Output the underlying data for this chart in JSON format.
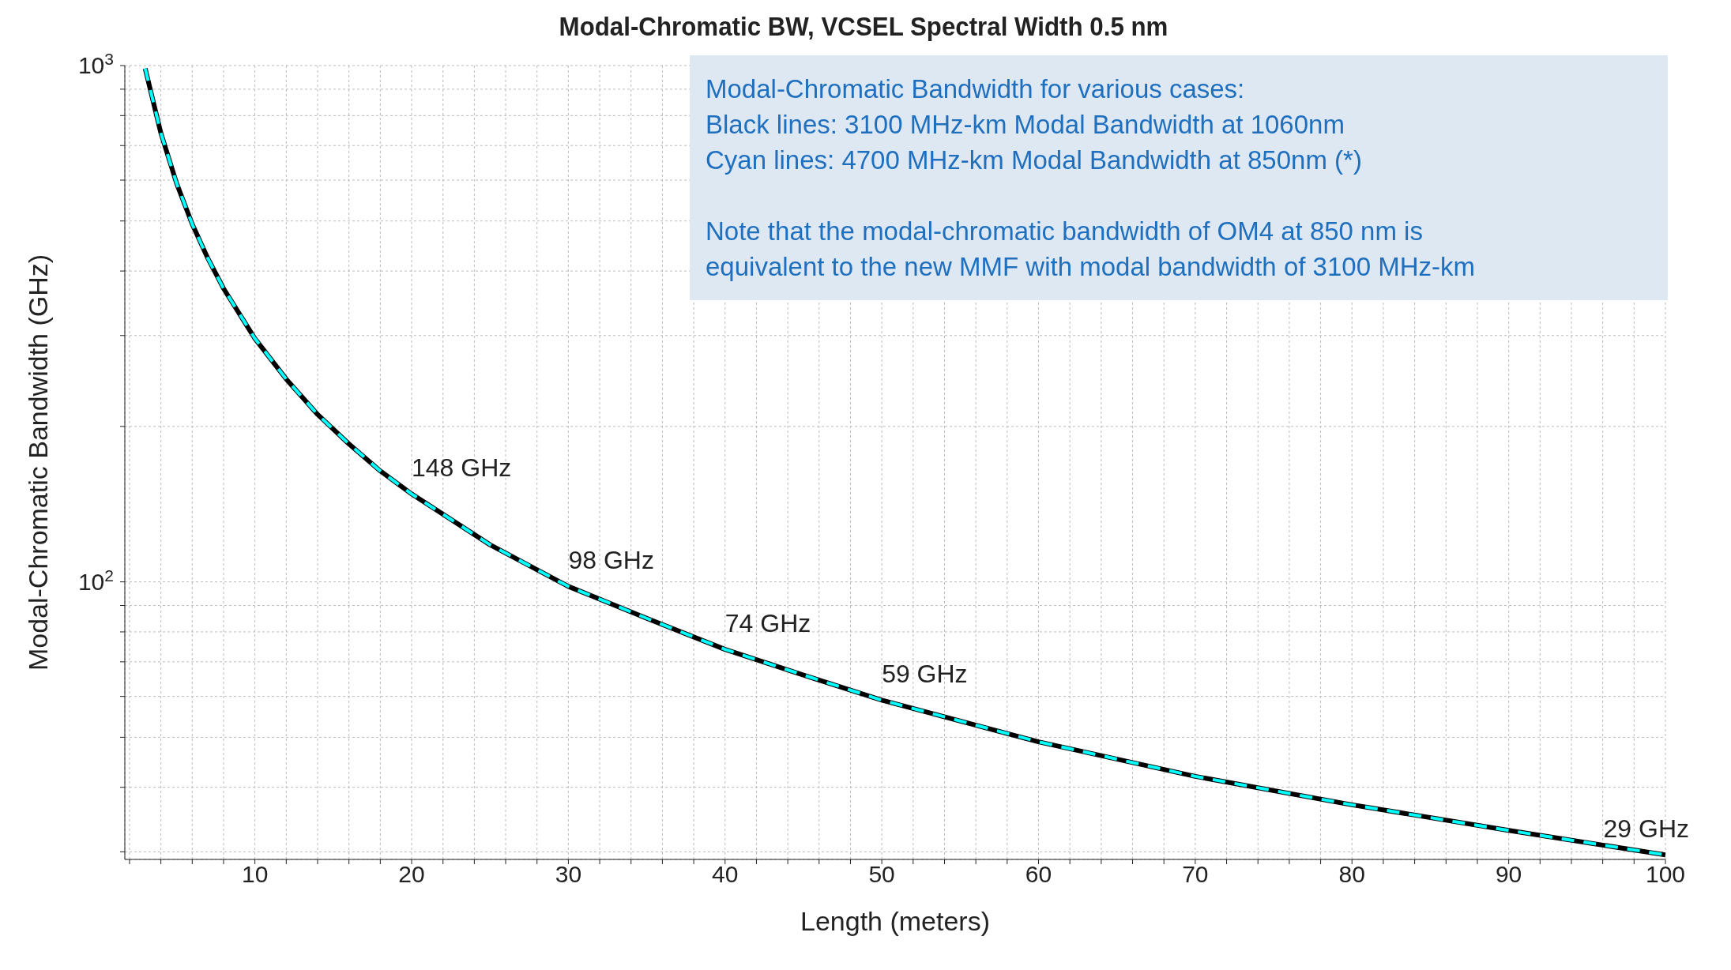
{
  "chart_data": {
    "type": "line",
    "title": "Modal-Chromatic BW, VCSEL Spectral Width 0.5 nm",
    "xlabel": "Length (meters)",
    "ylabel": "Modal-Chromatic Bandwidth (GHz)",
    "x": [
      3,
      4,
      5,
      6,
      7,
      8,
      10,
      12,
      14,
      16,
      18,
      20,
      25,
      30,
      35,
      40,
      45,
      50,
      60,
      70,
      80,
      90,
      100
    ],
    "series": [
      {
        "color": "#000000",
        "line_style": "solid",
        "values": [
          987,
          740,
          592,
          493,
          423,
          370,
          296,
          247,
          211,
          185,
          164,
          148,
          118,
          98,
          85,
          74,
          66,
          59,
          49,
          42,
          37,
          33,
          29.6
        ]
      },
      {
        "color": "#00ffff",
        "line_style": "dashed",
        "values": [
          987,
          740,
          592,
          493,
          423,
          370,
          296,
          247,
          211,
          185,
          164,
          148,
          118,
          98,
          85,
          74,
          66,
          59,
          49,
          42,
          37,
          33,
          29.6
        ]
      }
    ],
    "log": "y",
    "xlim": [
      1.7,
      100
    ],
    "ylim": [
      29,
      1000
    ],
    "xticks": [
      {
        "value": 2,
        "label": null
      },
      {
        "value": 4,
        "label": null
      },
      {
        "value": 6,
        "label": null
      },
      {
        "value": 8,
        "label": null
      },
      10,
      {
        "value": 12,
        "label": null
      },
      {
        "value": 14,
        "label": null
      },
      {
        "value": 16,
        "label": null
      },
      {
        "value": 18,
        "label": null
      },
      20,
      {
        "value": 22,
        "label": null
      },
      {
        "value": 24,
        "label": null
      },
      {
        "value": 26,
        "label": null
      },
      {
        "value": 28,
        "label": null
      },
      30,
      {
        "value": 32,
        "label": null
      },
      {
        "value": 34,
        "label": null
      },
      {
        "value": 36,
        "label": null
      },
      {
        "value": 38,
        "label": null
      },
      40,
      {
        "value": 42,
        "label": null
      },
      {
        "value": 44,
        "label": null
      },
      {
        "value": 46,
        "label": null
      },
      {
        "value": 48,
        "label": null
      },
      50,
      {
        "value": 52,
        "label": null
      },
      {
        "value": 54,
        "label": null
      },
      {
        "value": 56,
        "label": null
      },
      {
        "value": 58,
        "label": null
      },
      60,
      {
        "value": 62,
        "label": null
      },
      {
        "value": 64,
        "label": null
      },
      {
        "value": 66,
        "label": null
      },
      {
        "value": 68,
        "label": null
      },
      70,
      {
        "value": 72,
        "label": null
      },
      {
        "value": 74,
        "label": null
      },
      {
        "value": 76,
        "label": null
      },
      {
        "value": 78,
        "label": null
      },
      80,
      {
        "value": 82,
        "label": null
      },
      {
        "value": 84,
        "label": null
      },
      {
        "value": 86,
        "label": null
      },
      {
        "value": 88,
        "label": null
      },
      90,
      {
        "value": 92,
        "label": null
      },
      {
        "value": 94,
        "label": null
      },
      {
        "value": 96,
        "label": null
      },
      {
        "value": 98,
        "label": null
      },
      100
    ],
    "yticks": [
      {
        "value": 30,
        "label": null
      },
      {
        "value": 40,
        "label": null
      },
      {
        "value": 50,
        "label": null
      },
      {
        "value": 60,
        "label": null
      },
      {
        "value": 70,
        "label": null
      },
      {
        "value": 80,
        "label": null
      },
      {
        "value": 90,
        "label": null
      },
      {
        "value": 100,
        "label": "10$^{2}$"
      },
      {
        "value": 200,
        "label": null
      },
      {
        "value": 300,
        "label": null
      },
      {
        "value": 400,
        "label": null
      },
      {
        "value": 500,
        "label": null
      },
      {
        "value": 600,
        "label": null
      },
      {
        "value": 700,
        "label": null
      },
      {
        "value": 800,
        "label": null
      },
      {
        "value": 900,
        "label": null
      },
      {
        "value": 1000,
        "label": "10$^{3}$"
      }
    ],
    "grid": true,
    "legend": false,
    "marker": "none",
    "annotations": [
      "Modal-Chromatic Bandwidth for various cases:",
      "Black lines: 3100 MHz-km Modal Bandwidth at 1060nm",
      "Cyan lines: 4700 MHz-km Modal Bandwidth at 850nm (*)",
      "Note that the modal-chromatic bandwidth of OM4 at 850 nm is",
      "equivalent to the new MMF with modal bandwidth of 3100 MHz-km",
      {
        "text": "148 GHz",
        "x": 20,
        "y": 148
      },
      {
        "text": "98 GHz",
        "x": 30,
        "y": 98
      },
      {
        "text": "74 GHz",
        "x": 40,
        "y": 74
      },
      {
        "text": "59 GHz",
        "x": 50,
        "y": 59
      },
      {
        "text": "29 GHz",
        "x": 100,
        "y": 29.6
      }
    ]
  }
}
